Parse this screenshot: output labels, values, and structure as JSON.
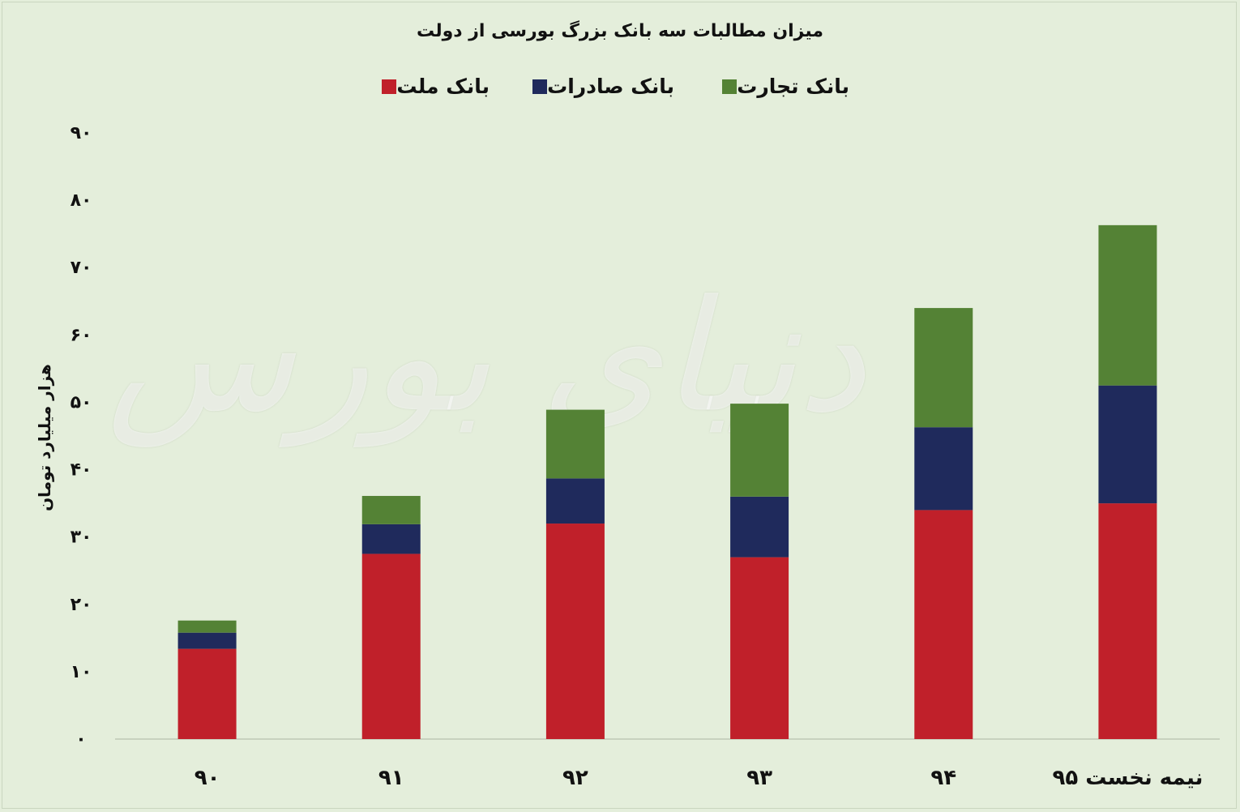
{
  "chart_data": {
    "type": "bar",
    "stacked": true,
    "title": "میزان مطالبات سه بانک بزرگ بورسی از دولت",
    "ylabel": "هزار میلیارد تومان",
    "xlabel": "",
    "categories": [
      "۹۰",
      "۹۱",
      "۹۲",
      "۹۳",
      "۹۴",
      "نیمه نخست ۹۵"
    ],
    "yticks": [
      "۰",
      "۱۰",
      "۲۰",
      "۳۰",
      "۴۰",
      "۵۰",
      "۶۰",
      "۷۰",
      "۸۰",
      "۹۰"
    ],
    "ylim": [
      0,
      90
    ],
    "legend_position": "top",
    "grid": false,
    "series": [
      {
        "name": "بانک ملت",
        "color": "#c0202a",
        "values": [
          13.4,
          27.5,
          32,
          27,
          34,
          35
        ]
      },
      {
        "name": "بانک صادرات",
        "color": "#1f2a5c",
        "values": [
          2.4,
          4.4,
          6.7,
          9,
          12.3,
          17.5
        ]
      },
      {
        "name": "بانک تجارت",
        "color": "#548235",
        "values": [
          1.8,
          4.2,
          10.2,
          13.8,
          17.7,
          23.8
        ]
      }
    ]
  },
  "watermark": "دنیای بورس"
}
